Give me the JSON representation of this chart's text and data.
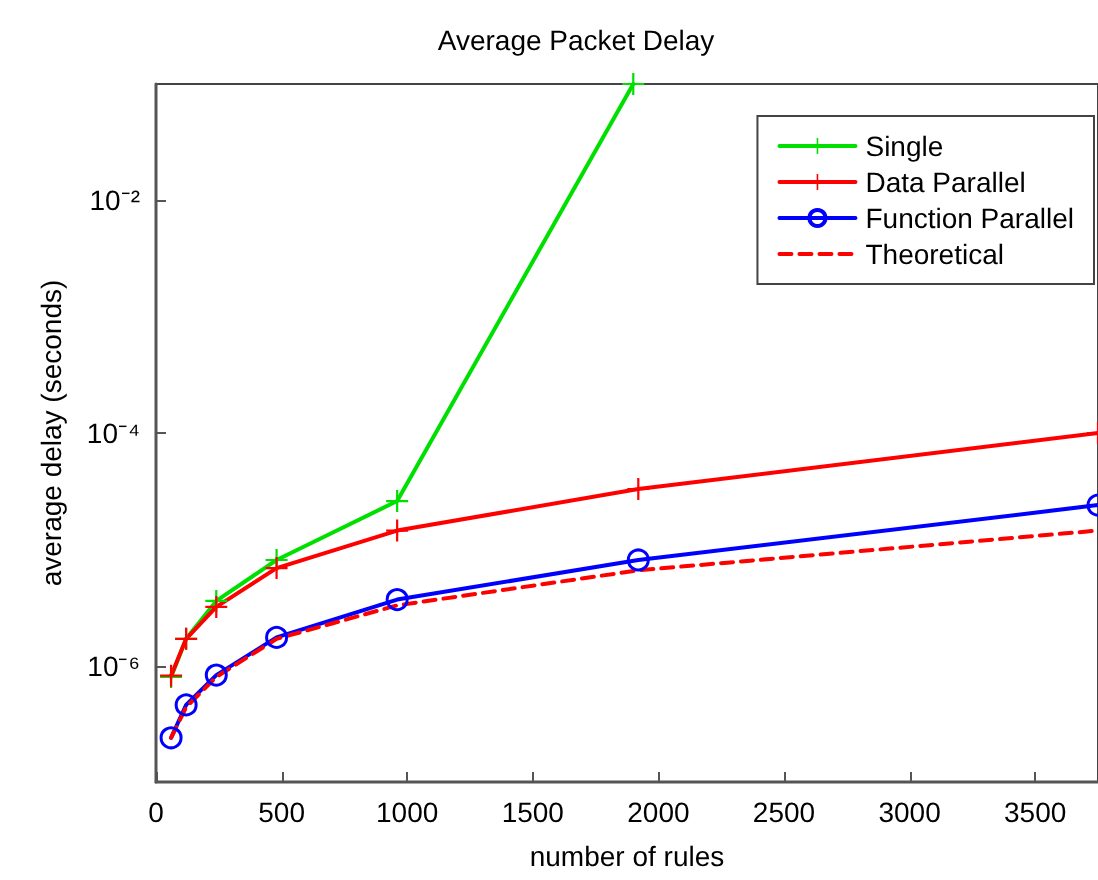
{
  "chart_data": {
    "type": "line",
    "title": "Average Packet Delay",
    "xlabel": "number of rules",
    "ylabel": "average delay (seconds)",
    "x": [
      60,
      120,
      240,
      480,
      960,
      1920,
      3750
    ],
    "series": [
      {
        "name": "Single",
        "color": "#00e000",
        "marker": "cross",
        "line_style": "solid",
        "x": [
          60,
          120,
          240,
          480,
          960,
          1900
        ],
        "values": [
          8e-07,
          1.7e-06,
          3.6e-06,
          8.1e-06,
          2.6e-05,
          0.1
        ]
      },
      {
        "name": "Data Parallel",
        "color": "#ff0000",
        "marker": "cross",
        "line_style": "solid",
        "values": [
          8.2e-07,
          1.7e-06,
          3.2e-06,
          6.9e-06,
          1.45e-05,
          3.3e-05,
          0.0001
        ]
      },
      {
        "name": "Function Parallel",
        "color": "#0000ff",
        "marker": "circle",
        "line_style": "solid",
        "values": [
          2.4e-07,
          4.6e-07,
          8.3e-07,
          1.75e-06,
          3.7e-06,
          8.1e-06,
          2.4e-05
        ]
      },
      {
        "name": "Theoretical",
        "color": "#ff0000",
        "marker": "none",
        "line_style": "dashed",
        "values": [
          2.4e-07,
          4.4e-07,
          8e-07,
          1.7e-06,
          3.3e-06,
          6.6e-06,
          1.45e-05
        ]
      }
    ],
    "xlim": [
      0,
      3750
    ],
    "xticks": [
      0,
      500,
      1000,
      1500,
      2000,
      2500,
      3000,
      3500
    ],
    "ylim": [
      1e-07,
      0.1
    ],
    "yticks": [
      {
        "value": 1e-06,
        "label": "10⁻⁶"
      },
      {
        "value": 0.0001,
        "label": "10⁻⁴"
      },
      {
        "value": 0.01,
        "label": "10⁻²"
      }
    ],
    "log": "y",
    "grid": false,
    "legend": "top right"
  }
}
